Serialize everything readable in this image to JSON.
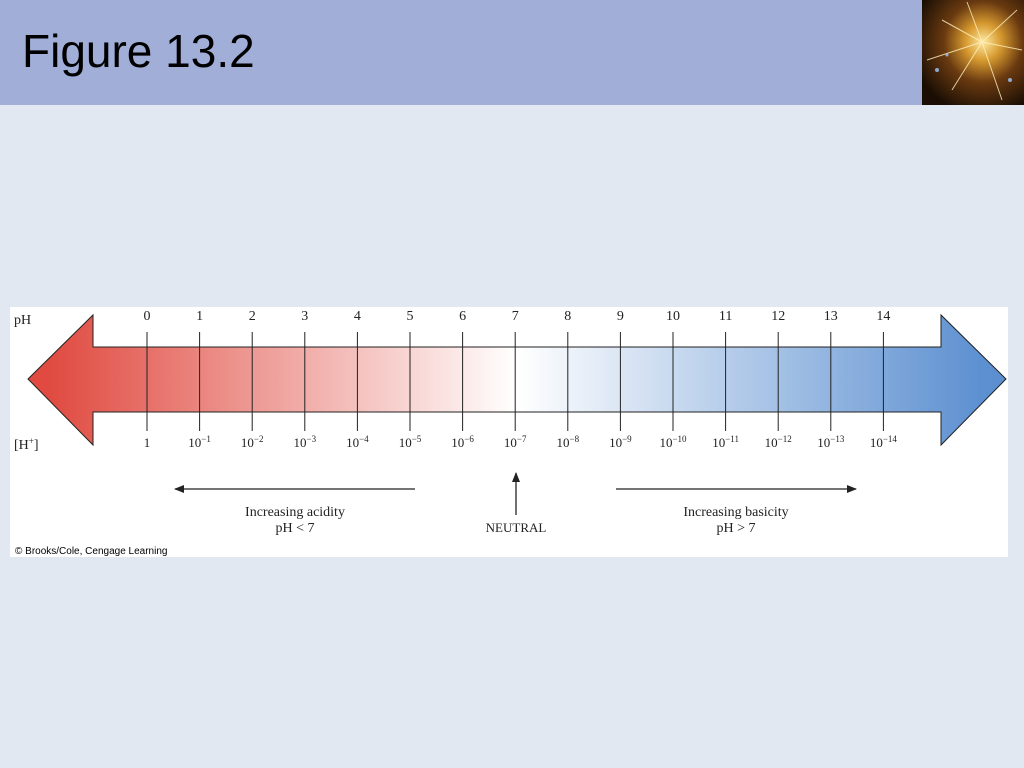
{
  "slide": {
    "title": "Figure 13.2",
    "background_color": "#e2e8f1",
    "header_color": "#a0aed8"
  },
  "figure": {
    "ph_label": "pH",
    "h_label_main": "[H",
    "h_label_sup": "+",
    "h_label_end": "]",
    "ph_values": [
      "0",
      "1",
      "2",
      "3",
      "4",
      "5",
      "6",
      "7",
      "8",
      "9",
      "10",
      "11",
      "12",
      "13",
      "14"
    ],
    "h_concentrations": [
      {
        "base": "1",
        "exp": ""
      },
      {
        "base": "10",
        "exp": "−1"
      },
      {
        "base": "10",
        "exp": "−2"
      },
      {
        "base": "10",
        "exp": "−3"
      },
      {
        "base": "10",
        "exp": "−4"
      },
      {
        "base": "10",
        "exp": "−5"
      },
      {
        "base": "10",
        "exp": "−6"
      },
      {
        "base": "10",
        "exp": "−7"
      },
      {
        "base": "10",
        "exp": "−8"
      },
      {
        "base": "10",
        "exp": "−9"
      },
      {
        "base": "10",
        "exp": "−10"
      },
      {
        "base": "10",
        "exp": "−11"
      },
      {
        "base": "10",
        "exp": "−12"
      },
      {
        "base": "10",
        "exp": "−13"
      },
      {
        "base": "10",
        "exp": "−14"
      }
    ],
    "acid_label_1": "Increasing acidity",
    "acid_label_2": "pH < 7",
    "neutral_label": "NEUTRAL",
    "base_label_1": "Increasing basicity",
    "base_label_2": "pH > 7",
    "copyright": "© Brooks/Cole, Cengage Learning",
    "colors": {
      "acid": "#e04a40",
      "neutral": "#ffffff",
      "base": "#5b8fd0",
      "line": "#222222"
    }
  }
}
